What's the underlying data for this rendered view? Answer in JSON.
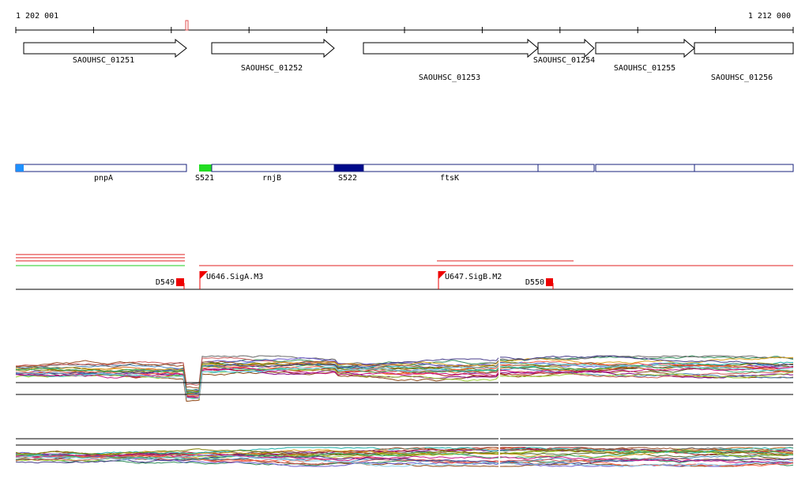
{
  "ruler": {
    "start": "1 202 001",
    "end": "1 212 000"
  },
  "genes": [
    {
      "name": "SAOUHSC_01251"
    },
    {
      "name": "SAOUHSC_01252"
    },
    {
      "name": "SAOUHSC_01253"
    },
    {
      "name": "SAOUHSC_01254"
    },
    {
      "name": "SAOUHSC_01255"
    },
    {
      "name": "SAOUHSC_01256"
    }
  ],
  "features": [
    {
      "label": "pnpA"
    },
    {
      "label": "S521"
    },
    {
      "label": "rnjB"
    },
    {
      "label": "S522"
    },
    {
      "label": "ftsK"
    }
  ],
  "sites": [
    {
      "label": "D549"
    },
    {
      "label": "U646.SigA.M3"
    },
    {
      "label": "U647.SigB.M2"
    },
    {
      "label": "D550"
    }
  ]
}
